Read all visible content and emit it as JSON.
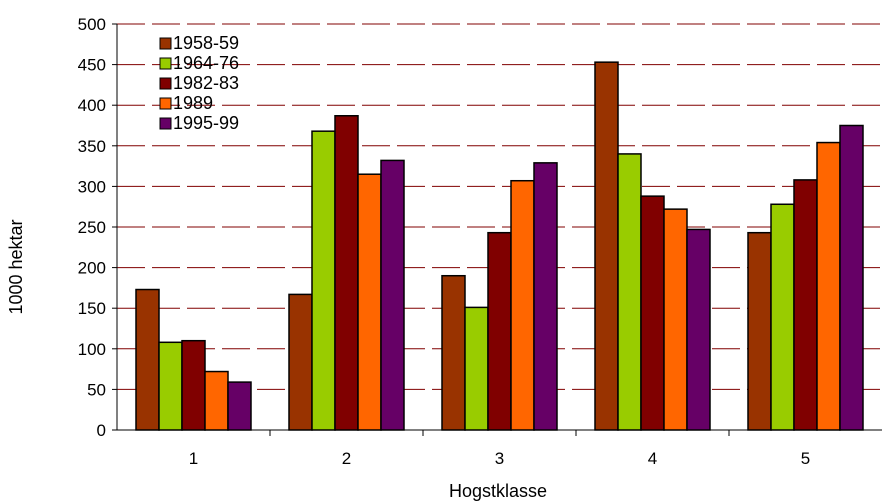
{
  "chart_data": {
    "type": "bar",
    "title": "",
    "xlabel": "Hogstklasse",
    "ylabel": "1000 hektar",
    "ylim": [
      0,
      500
    ],
    "yticks": [
      "0",
      "50",
      "100",
      "150",
      "200",
      "250",
      "300",
      "350",
      "400",
      "450",
      "500"
    ],
    "categories": [
      "1",
      "2",
      "3",
      "4",
      "5"
    ],
    "series": [
      {
        "name": "1958-59",
        "color": "#993300",
        "values": [
          173,
          167,
          190,
          453,
          243
        ]
      },
      {
        "name": "1964-76",
        "color": "#99CC00",
        "values": [
          108,
          368,
          151,
          340,
          278
        ]
      },
      {
        "name": "1982-83",
        "color": "#800000",
        "values": [
          110,
          387,
          243,
          288,
          308
        ]
      },
      {
        "name": "1989",
        "color": "#FF6600",
        "values": [
          72,
          315,
          307,
          272,
          354
        ]
      },
      {
        "name": "1995-99",
        "color": "#660066",
        "values": [
          59,
          332,
          329,
          247,
          375
        ]
      }
    ],
    "grid": {
      "horizontal": true,
      "style": "dashed",
      "color": "#800000"
    },
    "legend": {
      "position": "top-left"
    }
  }
}
